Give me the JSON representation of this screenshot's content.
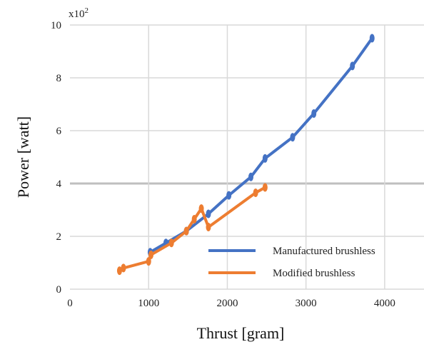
{
  "chart_data": {
    "type": "line",
    "title": "",
    "xlabel": "Thrust [gram]",
    "ylabel": "Power [watt]",
    "y_multiplier_label": "x10",
    "y_multiplier_exponent": "2",
    "xlim": [
      0,
      4500
    ],
    "ylim": [
      0,
      10
    ],
    "xticks": [
      "0",
      "1000",
      "2000",
      "3000",
      "4000"
    ],
    "yticks": [
      "0",
      "2",
      "4",
      "6",
      "8",
      "10"
    ],
    "grid": true,
    "legend_position": "bottom-right",
    "series": [
      {
        "name": "Manufactured brushless",
        "color": "#4472C4",
        "x": [
          1020,
          1220,
          1480,
          1760,
          2020,
          2300,
          2480,
          2830,
          3100,
          3590,
          3840
        ],
        "y": [
          1.4,
          1.75,
          2.2,
          2.85,
          3.55,
          4.25,
          4.95,
          5.75,
          6.65,
          8.45,
          9.5
        ]
      },
      {
        "name": "Modified brushless",
        "color": "#ED7D31",
        "x": [
          630,
          680,
          1000,
          1030,
          1290,
          1480,
          1580,
          1670,
          1760,
          2360,
          2480
        ],
        "y": [
          0.7,
          0.8,
          1.05,
          1.3,
          1.75,
          2.2,
          2.65,
          3.05,
          2.35,
          3.65,
          3.85
        ]
      }
    ]
  }
}
